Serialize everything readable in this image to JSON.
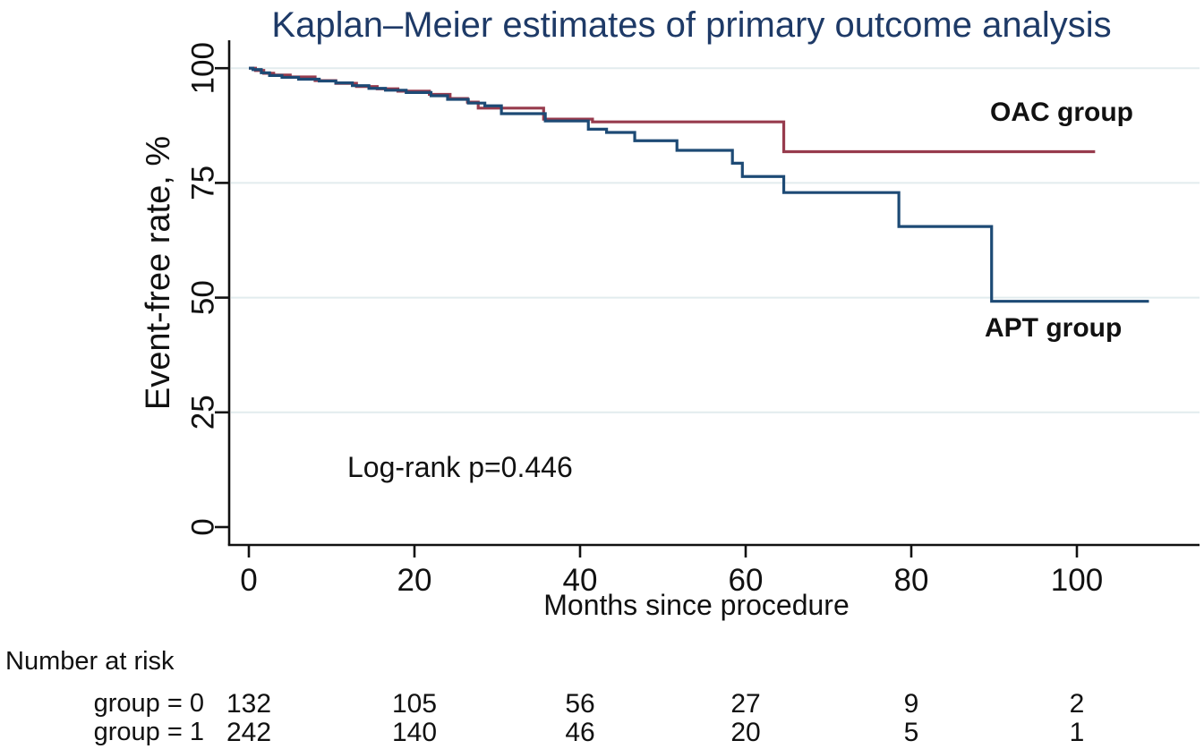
{
  "chart_data": {
    "type": "line",
    "subtype": "kaplan-meier-step",
    "title": "Kaplan–Meier estimates of primary outcome analysis",
    "xlabel": "Months since procedure",
    "ylabel": "Event-free rate, %",
    "annotation": "Log-rank p=0.446",
    "xlim": [
      0,
      115
    ],
    "ylim": [
      0,
      100
    ],
    "xticks": [
      0,
      20,
      40,
      60,
      80,
      100
    ],
    "yticks": [
      0,
      25,
      50,
      75,
      100
    ],
    "grid": "horizontal",
    "colors": {
      "title": "#1e3a67",
      "axis": "#111111",
      "grid": "#e2ecee",
      "oac": "#973b4d",
      "apt": "#1d4a75"
    },
    "series": [
      {
        "name": "OAC group",
        "color": "#973b4d",
        "steps": [
          [
            0,
            100
          ],
          [
            0.8,
            99.5
          ],
          [
            1.8,
            98.9
          ],
          [
            3,
            98.5
          ],
          [
            5,
            98.1
          ],
          [
            8,
            97.3
          ],
          [
            10.5,
            96.7
          ],
          [
            13,
            96.0
          ],
          [
            15.5,
            95.5
          ],
          [
            18,
            95.0
          ],
          [
            21.8,
            94.3
          ],
          [
            24.3,
            93.4
          ],
          [
            26.4,
            92.6
          ],
          [
            27.7,
            91.3
          ],
          [
            35.6,
            88.9
          ],
          [
            41.5,
            88.3
          ],
          [
            64.6,
            81.8
          ],
          [
            102.2,
            81.8
          ]
        ]
      },
      {
        "name": "APT group",
        "color": "#1d4a75",
        "steps": [
          [
            0,
            100
          ],
          [
            0.5,
            99.7
          ],
          [
            1.5,
            99.0
          ],
          [
            2.5,
            98.4
          ],
          [
            4,
            98.0
          ],
          [
            6,
            97.6
          ],
          [
            8.5,
            97.2
          ],
          [
            10.5,
            96.8
          ],
          [
            12.5,
            96.2
          ],
          [
            14.5,
            95.6
          ],
          [
            16.5,
            95.2
          ],
          [
            19,
            94.7
          ],
          [
            22,
            94.0
          ],
          [
            24,
            93.2
          ],
          [
            26.5,
            92.4
          ],
          [
            28.5,
            91.8
          ],
          [
            30.5,
            90.1
          ],
          [
            35.8,
            88.5
          ],
          [
            41,
            86.7
          ],
          [
            43.2,
            86.0
          ],
          [
            46.6,
            84.2
          ],
          [
            51.7,
            82.1
          ],
          [
            58.4,
            79.3
          ],
          [
            59.6,
            76.4
          ],
          [
            64.6,
            72.9
          ],
          [
            78.5,
            65.5
          ],
          [
            89.7,
            49.2
          ],
          [
            108.7,
            49.2
          ]
        ]
      }
    ],
    "at_risk": {
      "header": "Number at risk",
      "timepoints": [
        0,
        20,
        40,
        60,
        80,
        100
      ],
      "rows": [
        {
          "label": "group = 0",
          "values": [
            132,
            105,
            56,
            27,
            9,
            2
          ]
        },
        {
          "label": "group = 1",
          "values": [
            242,
            140,
            46,
            20,
            5,
            1
          ]
        }
      ]
    }
  }
}
